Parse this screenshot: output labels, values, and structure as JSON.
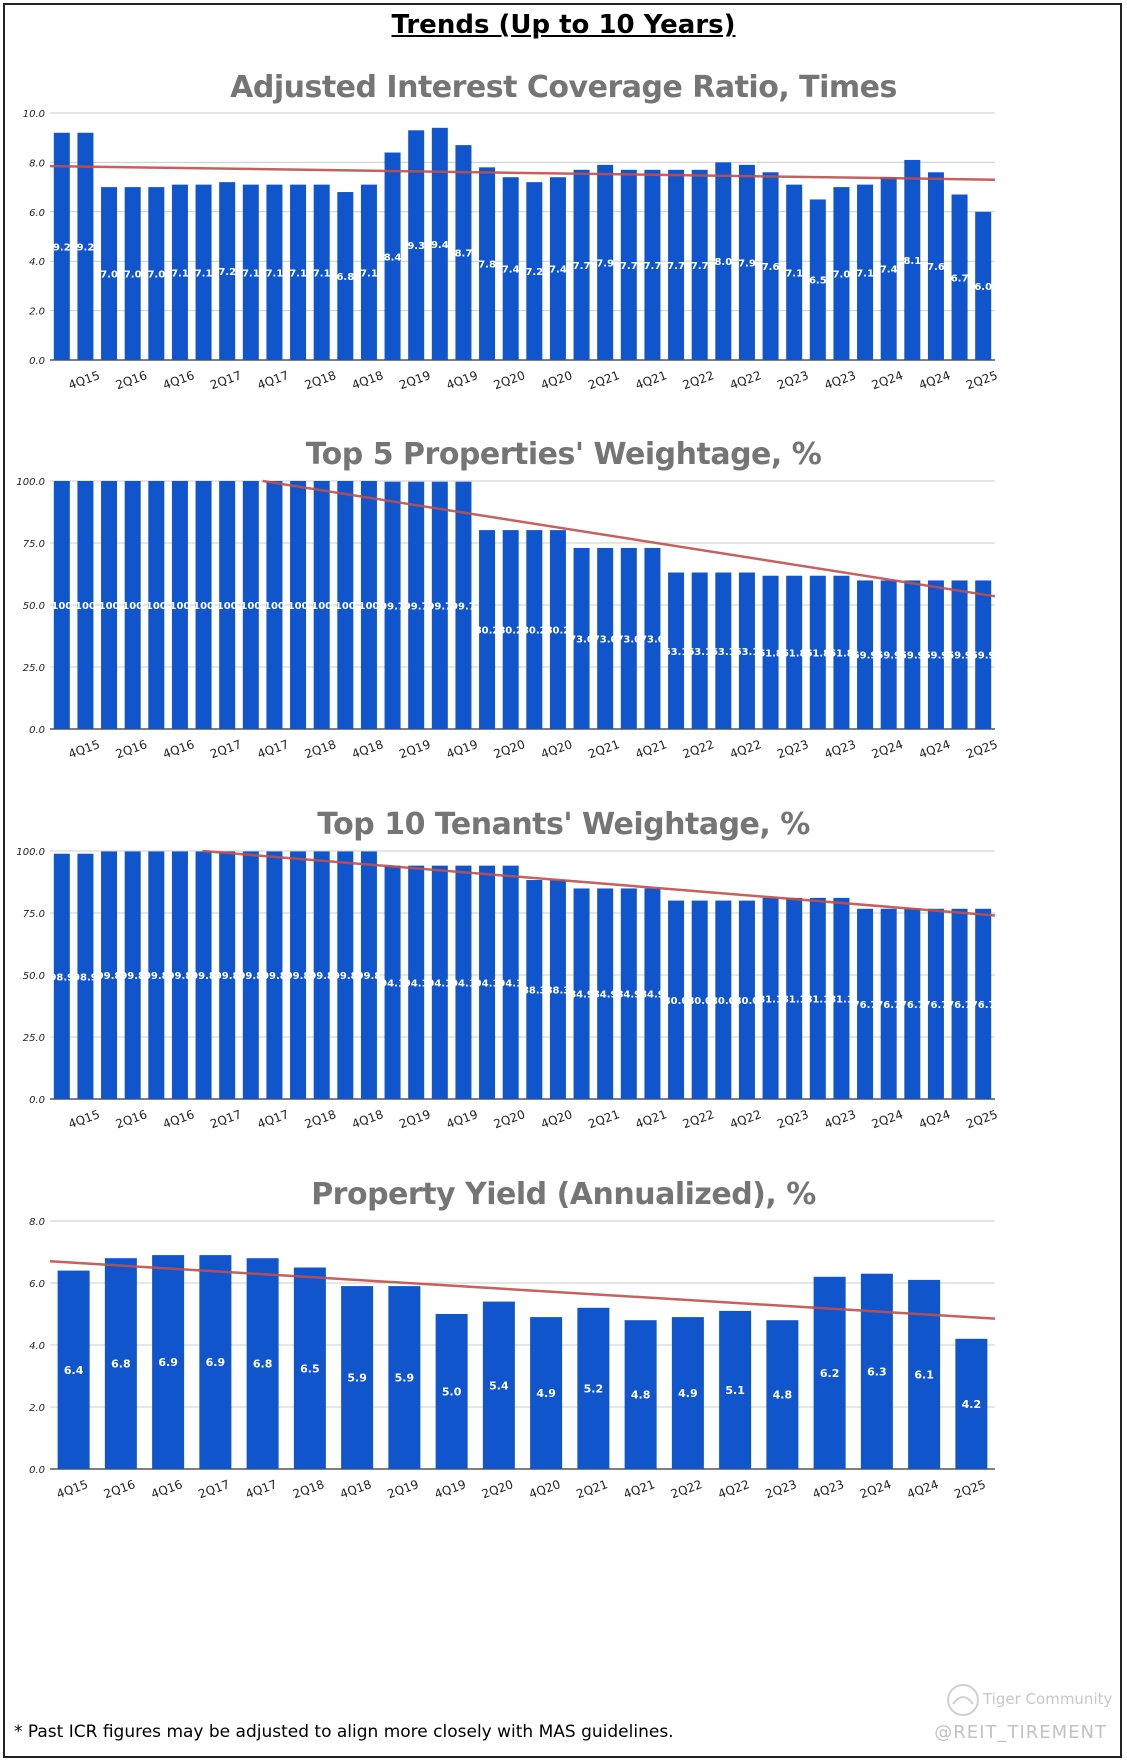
{
  "page_title": "Trends (Up to 10 Years)",
  "footnote": "* Past ICR figures may be adjusted to align more closely with MAS guidelines.",
  "handle": "@REIT_TIREMENT",
  "watermark": "Tiger Community",
  "colors": {
    "bar": "#1155cc",
    "trend": "#c0504d",
    "grid": "#cccccc",
    "title": "#757575"
  },
  "chart_data": [
    {
      "type": "bar",
      "title": "Adjusted Interest Coverage Ratio, Times",
      "categories": [
        "3Q15",
        "4Q15",
        "1Q16",
        "2Q16",
        "3Q16",
        "4Q16",
        "1Q17",
        "2Q17",
        "3Q17",
        "4Q17",
        "1Q18",
        "2Q18",
        "3Q18",
        "4Q18",
        "1Q19",
        "2Q19",
        "3Q19",
        "4Q19",
        "1Q20",
        "2Q20",
        "3Q20",
        "4Q20",
        "1Q21",
        "2Q21",
        "3Q21",
        "4Q21",
        "1Q22",
        "2Q22",
        "3Q22",
        "4Q22",
        "1Q23",
        "2Q23",
        "3Q23",
        "4Q23",
        "1Q24",
        "2Q24",
        "3Q24",
        "4Q24",
        "1Q25",
        "2Q25"
      ],
      "values": [
        9.2,
        9.2,
        7.0,
        7.0,
        7.0,
        7.1,
        7.1,
        7.2,
        7.1,
        7.1,
        7.1,
        7.1,
        6.8,
        7.1,
        8.4,
        9.3,
        9.4,
        8.7,
        7.8,
        7.4,
        7.2,
        7.4,
        7.7,
        7.9,
        7.7,
        7.7,
        7.7,
        7.7,
        8.0,
        7.9,
        7.6,
        7.1,
        6.5,
        7.0,
        7.1,
        7.4,
        8.1,
        7.6,
        6.7,
        6.0
      ],
      "labels": [
        "9.2",
        "9.2",
        "7.0",
        "7.0",
        "7.0",
        "7.1",
        "7.1",
        "7.2",
        "7.1",
        "7.1",
        "7.1",
        "7.1",
        "6.8",
        "7.1",
        "8.4",
        "9.3",
        "9.4",
        "8.7",
        "7.8",
        "7.4",
        "7.2",
        "7.4",
        "7.7",
        "7.9",
        "7.7",
        "7.7",
        "7.7",
        "7.7",
        "8.0",
        "7.9",
        "7.6",
        "7.1",
        "6.5",
        "7.0",
        "7.1",
        "7.4",
        "8.1",
        "7.6",
        "6.7",
        "6.0"
      ],
      "xticks": [
        "4Q15",
        "2Q16",
        "4Q16",
        "2Q17",
        "4Q17",
        "2Q18",
        "4Q18",
        "2Q19",
        "4Q19",
        "2Q20",
        "4Q20",
        "2Q21",
        "4Q21",
        "2Q22",
        "4Q22",
        "2Q23",
        "4Q23",
        "2Q24",
        "4Q24",
        "2Q25"
      ],
      "yticks": [
        "0.0",
        "2.0",
        "4.0",
        "6.0",
        "8.0",
        "10.0"
      ],
      "ylim": [
        0,
        10
      ],
      "trend": [
        7.85,
        7.3
      ],
      "grid": true
    },
    {
      "type": "bar",
      "title": "Top 5 Properties' Weightage, %",
      "categories": [
        "3Q15",
        "4Q15",
        "1Q16",
        "2Q16",
        "3Q16",
        "4Q16",
        "1Q17",
        "2Q17",
        "3Q17",
        "4Q17",
        "1Q18",
        "2Q18",
        "3Q18",
        "4Q18",
        "1Q19",
        "2Q19",
        "3Q19",
        "4Q19",
        "1Q20",
        "2Q20",
        "3Q20",
        "4Q20",
        "1Q21",
        "2Q21",
        "3Q21",
        "4Q21",
        "1Q22",
        "2Q22",
        "3Q22",
        "4Q22",
        "1Q23",
        "2Q23",
        "3Q23",
        "4Q23",
        "1Q24",
        "2Q24",
        "3Q24",
        "4Q24",
        "1Q25",
        "2Q25"
      ],
      "values": [
        100,
        100,
        100,
        100,
        100,
        100,
        100,
        100,
        100,
        100,
        100,
        100,
        100,
        100,
        99.7,
        99.7,
        99.7,
        99.7,
        80.2,
        80.2,
        80.2,
        80.2,
        73.0,
        73.0,
        73.0,
        73.0,
        63.1,
        63.1,
        63.1,
        63.1,
        61.8,
        61.8,
        61.8,
        61.8,
        59.9,
        59.9,
        59.9,
        59.9,
        59.9,
        59.9
      ],
      "labels": [
        "100",
        "100",
        "100",
        "100",
        "100",
        "100",
        "100",
        "100",
        "100",
        "100",
        "100",
        "100",
        "100",
        "100",
        "99.7",
        "99.7",
        "99.7",
        "99.7",
        "80.2",
        "80.2",
        "80.2",
        "80.2",
        "73.0",
        "73.0",
        "73.0",
        "73.0",
        "63.1",
        "63.1",
        "63.1",
        "63.1",
        "61.8",
        "61.8",
        "61.8",
        "61.8",
        "59.9",
        "59.9",
        "59.9",
        "59.9",
        "59.9",
        "59.9"
      ],
      "xticks": [
        "4Q15",
        "2Q16",
        "4Q16",
        "2Q17",
        "4Q17",
        "2Q18",
        "4Q18",
        "2Q19",
        "4Q19",
        "2Q20",
        "4Q20",
        "2Q21",
        "4Q21",
        "2Q22",
        "4Q22",
        "2Q23",
        "4Q23",
        "2Q24",
        "4Q24",
        "2Q25"
      ],
      "yticks": [
        "0.0",
        "25.0",
        "50.0",
        "75.0",
        "100.0"
      ],
      "ylim": [
        0,
        100
      ],
      "trend": [
        113.5,
        53.5
      ],
      "grid": true
    },
    {
      "type": "bar",
      "title": "Top 10 Tenants' Weightage, %",
      "categories": [
        "3Q15",
        "4Q15",
        "1Q16",
        "2Q16",
        "3Q16",
        "4Q16",
        "1Q17",
        "2Q17",
        "3Q17",
        "4Q17",
        "1Q18",
        "2Q18",
        "3Q18",
        "4Q18",
        "1Q19",
        "2Q19",
        "3Q19",
        "4Q19",
        "1Q20",
        "2Q20",
        "3Q20",
        "4Q20",
        "1Q21",
        "2Q21",
        "3Q21",
        "4Q21",
        "1Q22",
        "2Q22",
        "3Q22",
        "4Q22",
        "1Q23",
        "2Q23",
        "3Q23",
        "4Q23",
        "1Q24",
        "2Q24",
        "3Q24",
        "4Q24",
        "1Q25",
        "2Q25"
      ],
      "values": [
        98.9,
        98.9,
        99.8,
        99.8,
        99.8,
        99.8,
        99.8,
        99.8,
        99.8,
        99.8,
        99.8,
        99.8,
        99.8,
        99.8,
        94.1,
        94.1,
        94.1,
        94.1,
        94.1,
        94.1,
        88.3,
        88.3,
        84.9,
        84.9,
        84.9,
        84.9,
        80.0,
        80.0,
        80.0,
        80.0,
        81.1,
        81.1,
        81.1,
        81.1,
        76.7,
        76.7,
        76.7,
        76.7,
        76.7,
        76.7
      ],
      "labels": [
        "98.9",
        "98.9",
        "99.8",
        "99.8",
        "99.8",
        "99.8",
        "99.8",
        "99.8",
        "99.8",
        "99.8",
        "99.8",
        "99.8",
        "99.8",
        "99.8",
        "94.1",
        "94.1",
        "94.1",
        "94.1",
        "94.1",
        "94.1",
        "88.3",
        "88.3",
        "84.9",
        "84.9",
        "84.9",
        "84.9",
        "80.0",
        "80.0",
        "80.0",
        "80.0",
        "81.1",
        "81.1",
        "81.1",
        "81.1",
        "76.7",
        "76.7",
        "76.7",
        "76.7",
        "76.7",
        "76.7"
      ],
      "xticks": [
        "4Q15",
        "2Q16",
        "4Q16",
        "2Q17",
        "4Q17",
        "2Q18",
        "4Q18",
        "2Q19",
        "4Q19",
        "2Q20",
        "4Q20",
        "2Q21",
        "4Q21",
        "2Q22",
        "4Q22",
        "2Q23",
        "4Q23",
        "2Q24",
        "4Q24",
        "2Q25"
      ],
      "yticks": [
        "0.0",
        "25.0",
        "50.0",
        "75.0",
        "100.0"
      ],
      "ylim": [
        0,
        100
      ],
      "trend": [
        105,
        74
      ],
      "grid": true
    },
    {
      "type": "bar",
      "title": "Property Yield (Annualized), %",
      "categories": [
        "4Q15",
        "2Q16",
        "4Q16",
        "2Q17",
        "4Q17",
        "2Q18",
        "4Q18",
        "2Q19",
        "4Q19",
        "2Q20",
        "4Q20",
        "2Q21",
        "4Q21",
        "2Q22",
        "4Q22",
        "2Q23",
        "4Q23",
        "2Q24",
        "4Q24",
        "2Q25"
      ],
      "values": [
        6.4,
        6.8,
        6.9,
        6.9,
        6.8,
        6.5,
        5.9,
        5.9,
        5.0,
        5.4,
        4.9,
        5.2,
        4.8,
        4.9,
        5.1,
        4.8,
        6.2,
        6.3,
        6.1,
        4.2
      ],
      "labels": [
        "6.4",
        "6.8",
        "6.9",
        "6.9",
        "6.8",
        "6.5",
        "5.9",
        "5.9",
        "5.0",
        "5.4",
        "4.9",
        "5.2",
        "4.8",
        "4.9",
        "5.1",
        "4.8",
        "6.2",
        "6.3",
        "6.1",
        "4.2"
      ],
      "xticks": [
        "4Q15",
        "2Q16",
        "4Q16",
        "2Q17",
        "4Q17",
        "2Q18",
        "4Q18",
        "2Q19",
        "4Q19",
        "2Q20",
        "4Q20",
        "2Q21",
        "4Q21",
        "2Q22",
        "4Q22",
        "2Q23",
        "4Q23",
        "2Q24",
        "4Q24",
        "2Q25"
      ],
      "yticks": [
        "0.0",
        "2.0",
        "4.0",
        "6.0",
        "8.0"
      ],
      "ylim": [
        0,
        8
      ],
      "trend": [
        6.7,
        4.85
      ],
      "grid": true
    }
  ]
}
